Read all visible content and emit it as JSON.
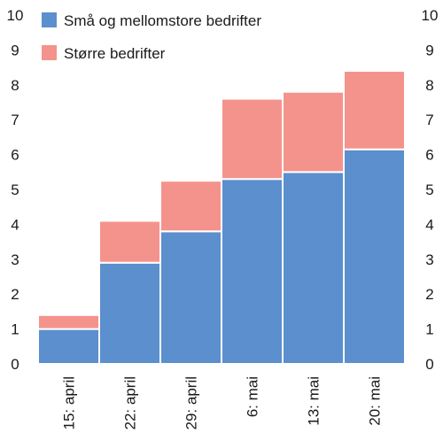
{
  "chart_data": {
    "type": "bar",
    "stacked": true,
    "categories": [
      "15: april",
      "22: april",
      "29: april",
      "6: mai",
      "13: mai",
      "20: mai"
    ],
    "series": [
      {
        "name": "Små og mellomstore bedrifter",
        "values": [
          1.0,
          2.9,
          3.8,
          5.3,
          5.5,
          6.15
        ],
        "color": "#5b8fcd"
      },
      {
        "name": "Større bedrifter",
        "values": [
          0.4,
          1.2,
          1.45,
          2.3,
          2.3,
          2.25
        ],
        "color": "#f4938c"
      }
    ],
    "ylim": [
      0,
      10
    ],
    "yticks": [
      "0",
      "1",
      "2",
      "3",
      "4",
      "5",
      "6",
      "7",
      "8",
      "9",
      "10"
    ],
    "y_axis_both_sides": true,
    "grid": false,
    "legend_position": "top-left"
  }
}
